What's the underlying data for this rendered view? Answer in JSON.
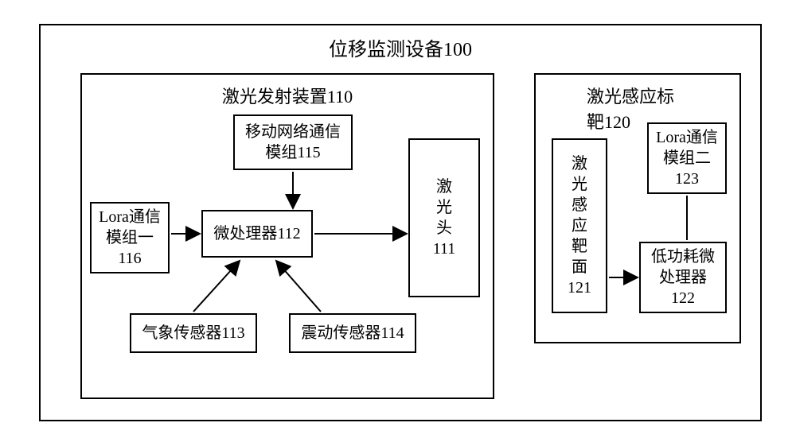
{
  "diagram": {
    "type": "flowchart",
    "background_color": "#ffffff",
    "border_color": "#000000",
    "line_width": 2,
    "font_family": "SimSun",
    "title_fontsize": 24,
    "title": "位移监测设备100",
    "left_group": {
      "title": "激光发射装置110",
      "title_fontsize": 22,
      "nodes": {
        "mobile": "移动网络通信\n模组115",
        "lora1": "Lora通信\n模组一\n116",
        "micro": "微处理器112",
        "laser": "激\n光\n头\n111",
        "weather": "气象传感器113",
        "vib": "震动传感器114"
      }
    },
    "right_group": {
      "title": "激光感应标靶120",
      "title_fontsize": 22,
      "nodes": {
        "surface": "激\n光\n感\n应\n靶\n面\n121",
        "lora2": "Lora通信\n模组二\n123",
        "lowmicro": "低功耗微\n处理器\n122"
      }
    },
    "arrows": {
      "arrowhead_size": 10,
      "stroke": "#000000",
      "stroke_width": 2
    }
  }
}
